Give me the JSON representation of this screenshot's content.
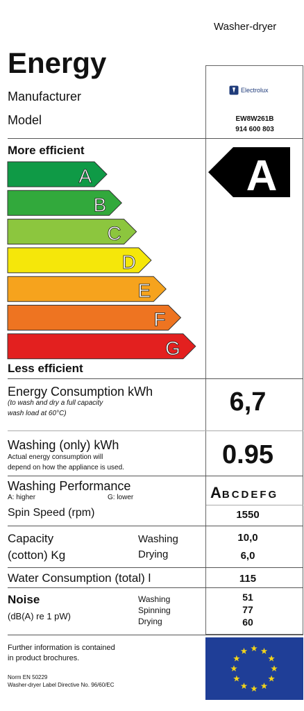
{
  "header": {
    "category": "Washer-dryer",
    "title": "Energy",
    "manufacturer_label": "Manufacturer",
    "model_label": "Model",
    "brand": "Electrolux",
    "model_number": "EW8W261B",
    "model_code": "914 600 803"
  },
  "scale": {
    "more_efficient": "More efficient",
    "less_efficient": "Less efficient",
    "classes": [
      {
        "letter": "A",
        "color": "#0f9a46"
      },
      {
        "letter": "B",
        "color": "#32a93c"
      },
      {
        "letter": "C",
        "color": "#8cc63e"
      },
      {
        "letter": "D",
        "color": "#f5e70a"
      },
      {
        "letter": "E",
        "color": "#f6a31d"
      },
      {
        "letter": "F",
        "color": "#ee7421"
      },
      {
        "letter": "G",
        "color": "#e3201f"
      }
    ],
    "rating": "A"
  },
  "energy": {
    "label": "Energy Consumption kWh",
    "note_line1": "(to wash and dry a full capacity",
    "note_line2": "wash load at 60°C)",
    "value": "6,7"
  },
  "washing": {
    "label": "Washing (only) kWh",
    "note_line1": "Actual energy consumption will",
    "note_line2": "depend on how the appliance is used.",
    "value": "0.95"
  },
  "performance": {
    "label": "Washing Performance",
    "legend_a": "A:  higher",
    "legend_g": "G:  lower",
    "rating_letter": "A",
    "other_letters": "BCDEFG"
  },
  "spin": {
    "label": "Spin Speed (rpm)",
    "value": "1550"
  },
  "capacity": {
    "label_line1": "Capacity",
    "label_line2": "(cotton) Kg",
    "washing_label": "Washing",
    "drying_label": "Drying",
    "washing_value": "10,0",
    "drying_value": "6,0"
  },
  "water": {
    "label": "Water Consumption (total) l",
    "value": "115"
  },
  "noise": {
    "label": "Noise",
    "unit": "(dB(A) re 1 pW)",
    "washing_label": "Washing",
    "spinning_label": "Spinning",
    "drying_label": "Drying",
    "washing_value": "51",
    "spinning_value": "77",
    "drying_value": "60"
  },
  "footer": {
    "info_line1": "Further information is contained",
    "info_line2": "in product brochures.",
    "norm_line1": "Norm EN 50229",
    "norm_line2": "Washer-dryer Label Directive No. 96/60/EC"
  },
  "colors": {
    "eu_blue": "#1f3e97",
    "eu_star": "#f2d41b",
    "rating_arrow": "#000000"
  }
}
